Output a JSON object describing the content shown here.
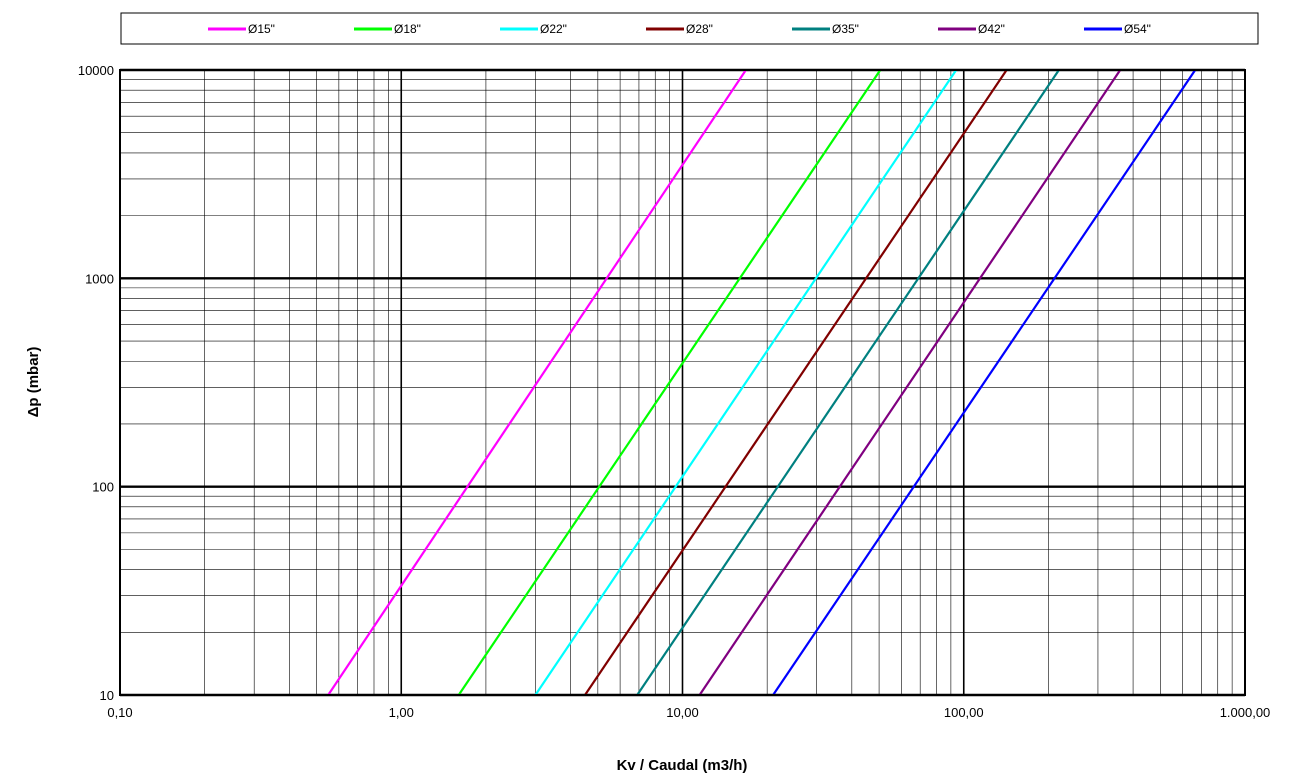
{
  "chart_data": {
    "type": "line",
    "x_scale": "log",
    "y_scale": "log",
    "xlim": [
      0.1,
      1000
    ],
    "ylim": [
      10,
      10000
    ],
    "x_ticks": [
      {
        "value": 0.1,
        "label": "0,10"
      },
      {
        "value": 1,
        "label": "1,00"
      },
      {
        "value": 10,
        "label": "10,00"
      },
      {
        "value": 100,
        "label": "100,00"
      },
      {
        "value": 1000,
        "label": "1.000,00"
      }
    ],
    "y_ticks": [
      {
        "value": 10,
        "label": "10"
      },
      {
        "value": 100,
        "label": "100"
      },
      {
        "value": 1000,
        "label": "1000"
      },
      {
        "value": 10000,
        "label": "10000"
      }
    ],
    "xlabel": "Kv / Caudal (m3/h)",
    "ylabel": "Δp (mbar)",
    "grid": true,
    "legend_position": "top",
    "series": [
      {
        "name": "Ø15\"",
        "color": "#ff00ff",
        "x": [
          0.55,
          16.8
        ],
        "y": [
          10,
          10000
        ]
      },
      {
        "name": "Ø18\"",
        "color": "#00ff00",
        "x": [
          1.6,
          50.5
        ],
        "y": [
          10,
          10000
        ]
      },
      {
        "name": "Ø22\"",
        "color": "#00ffff",
        "x": [
          3.0,
          94
        ],
        "y": [
          10,
          10000
        ]
      },
      {
        "name": "Ø28\"",
        "color": "#800000",
        "x": [
          4.5,
          142
        ],
        "y": [
          10,
          10000
        ]
      },
      {
        "name": "Ø35\"",
        "color": "#008080",
        "x": [
          6.9,
          218
        ],
        "y": [
          10,
          10000
        ]
      },
      {
        "name": "Ø42\"",
        "color": "#800080",
        "x": [
          11.5,
          360
        ],
        "y": [
          10,
          10000
        ]
      },
      {
        "name": "Ø54\"",
        "color": "#0000ff",
        "x": [
          21,
          665
        ],
        "y": [
          10,
          10000
        ]
      }
    ]
  }
}
